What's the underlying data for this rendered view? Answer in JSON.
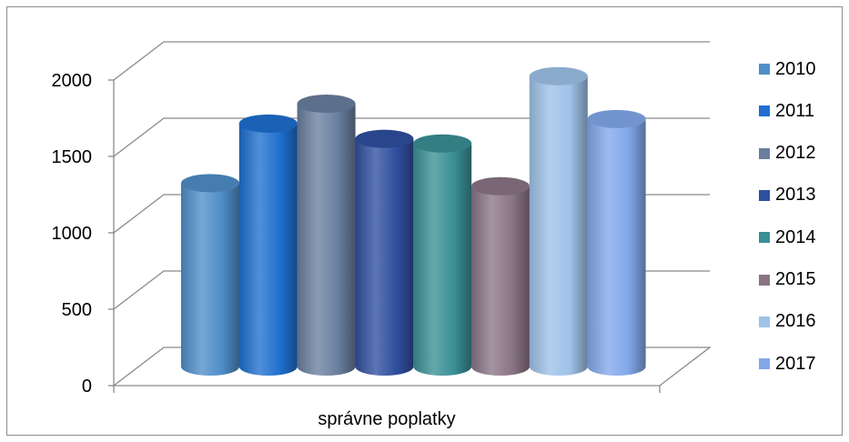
{
  "chart_data": {
    "type": "bar",
    "style": "3d-cylinder",
    "categories": [
      "správne poplatky"
    ],
    "series": [
      {
        "name": "2010",
        "values": [
          1200
        ],
        "color": "#4f8ec9"
      },
      {
        "name": "2011",
        "values": [
          1590
        ],
        "color": "#1f6fcf"
      },
      {
        "name": "2012",
        "values": [
          1720
        ],
        "color": "#6a7f9e"
      },
      {
        "name": "2013",
        "values": [
          1490
        ],
        "color": "#2f4f9f"
      },
      {
        "name": "2014",
        "values": [
          1460
        ],
        "color": "#3a8f95"
      },
      {
        "name": "2015",
        "values": [
          1180
        ],
        "color": "#8a7585"
      },
      {
        "name": "2016",
        "values": [
          1900
        ],
        "color": "#9ec2e8"
      },
      {
        "name": "2017",
        "values": [
          1620
        ],
        "color": "#82a8ea"
      }
    ],
    "ylim": [
      0,
      2000
    ],
    "yticks": [
      "0",
      "500",
      "1000",
      "1500",
      "2000"
    ],
    "grid": true,
    "legend": "right"
  }
}
